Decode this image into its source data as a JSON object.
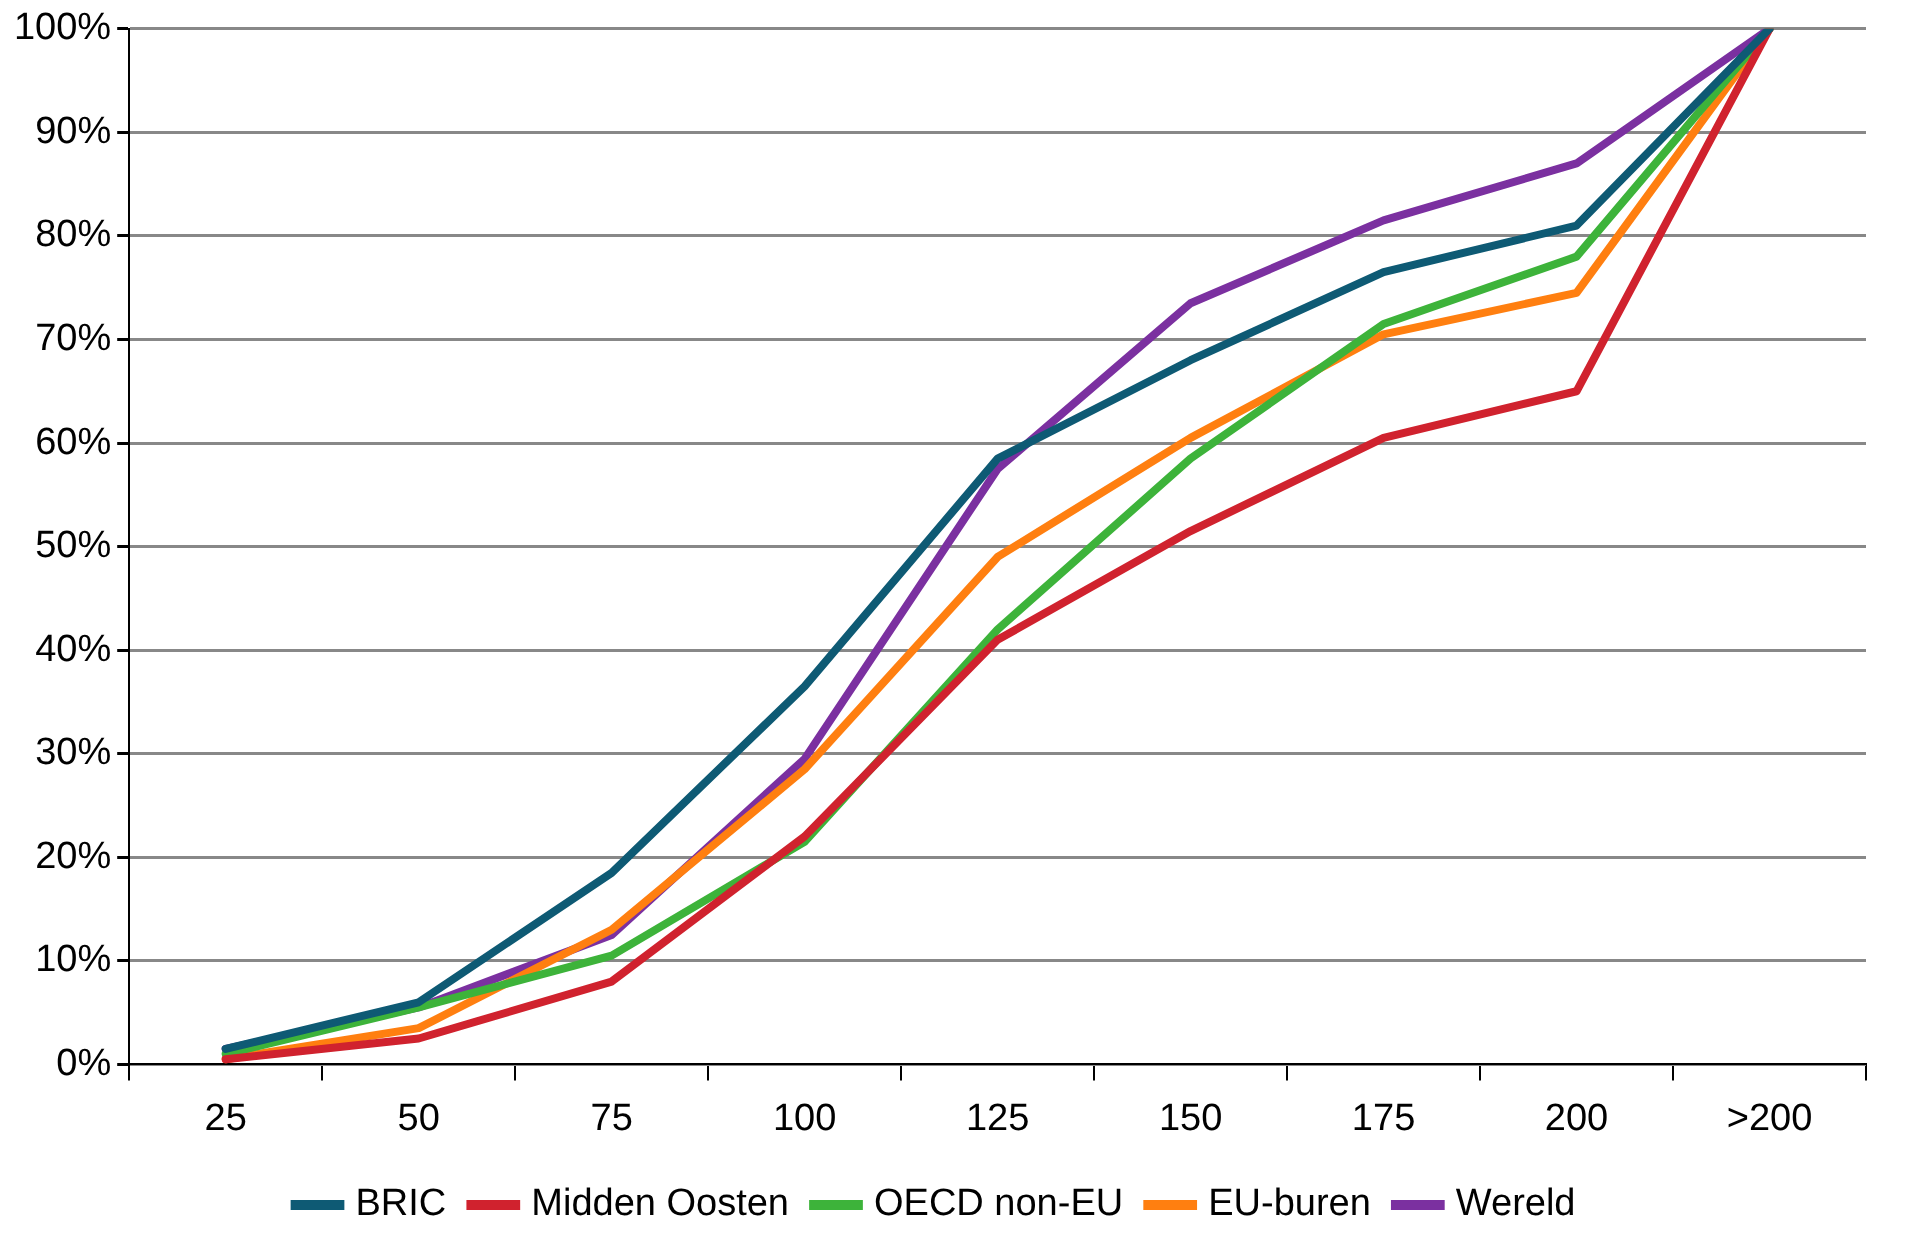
{
  "chart_data": {
    "type": "line",
    "categories": [
      "25",
      "50",
      "75",
      "100",
      "125",
      "150",
      "175",
      "200",
      ">200"
    ],
    "series": [
      {
        "name": "BRIC",
        "color": "#0e5a74",
        "values": [
          1.5,
          6,
          18.5,
          36.5,
          58.5,
          68,
          76.5,
          81,
          100
        ]
      },
      {
        "name": "Midden Oosten",
        "color": "#d0222e",
        "values": [
          0.5,
          2.5,
          8,
          22,
          41,
          51.5,
          60.5,
          65,
          100
        ]
      },
      {
        "name": "OECD non-EU",
        "color": "#3db33a",
        "values": [
          1,
          5.5,
          10.5,
          21.5,
          42,
          58.5,
          71.5,
          78,
          100
        ]
      },
      {
        "name": "EU-buren",
        "color": "#ff7f10",
        "values": [
          0.5,
          3.5,
          13,
          28.5,
          49,
          60.5,
          70.5,
          74.5,
          100
        ]
      },
      {
        "name": "Wereld",
        "color": "#7b30a0",
        "values": [
          1.5,
          5.5,
          12.5,
          29.5,
          57.5,
          73.5,
          81.5,
          87,
          100
        ]
      }
    ],
    "ylim": [
      0,
      100
    ],
    "yticks": [
      {
        "value": 0,
        "label": "0%"
      },
      {
        "value": 10,
        "label": "10%"
      },
      {
        "value": 20,
        "label": "20%"
      },
      {
        "value": 30,
        "label": "30%"
      },
      {
        "value": 40,
        "label": "40%"
      },
      {
        "value": 50,
        "label": "50%"
      },
      {
        "value": 60,
        "label": "60%"
      },
      {
        "value": 70,
        "label": "70%"
      },
      {
        "value": 80,
        "label": "80%"
      },
      {
        "value": 90,
        "label": "90%"
      },
      {
        "value": 100,
        "label": "100%"
      }
    ],
    "grid": "y",
    "legend": "bottom",
    "marker": "none",
    "line_style": "solid"
  }
}
